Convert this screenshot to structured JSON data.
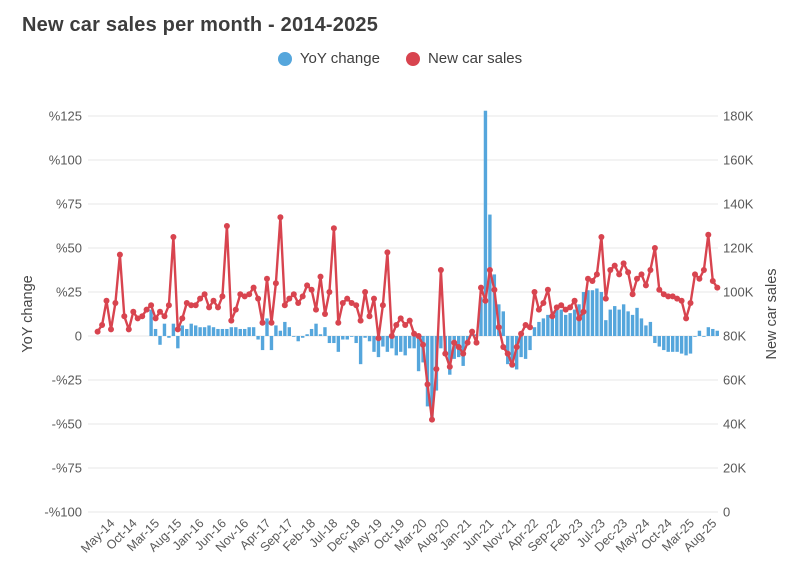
{
  "title": "New car sales per month - 2014-2025",
  "legend": [
    {
      "label": "YoY change",
      "color": "#55a6dc"
    },
    {
      "label": "New car sales",
      "color": "#d8444f"
    }
  ],
  "chart_data": {
    "type": "bar",
    "subtype": "combo bar+line, dual axis, monthly data Jan-2014 through Aug-2025",
    "title": "New car sales per month - 2014-2025",
    "left_axis": {
      "title": "YoY change",
      "unit": "%",
      "tick_labels": [
        "%125",
        "%100",
        "%75",
        "%50",
        "%25",
        "0",
        "-%25",
        "-%50",
        "-%75",
        "-%100"
      ],
      "range": [
        -100,
        125
      ],
      "grid": true
    },
    "right_axis": {
      "title": "New car sales",
      "unit": "units",
      "tick_labels": [
        "180K",
        "160K",
        "140K",
        "120K",
        "100K",
        "80K",
        "60K",
        "40K",
        "20K",
        "0"
      ],
      "range": [
        0,
        180000
      ]
    },
    "x_tick_labels": [
      "May-14",
      "Oct-14",
      "Mar-15",
      "Aug-15",
      "Jan-16",
      "Jun-16",
      "Nov-16",
      "Apr-17",
      "Sep-17",
      "Feb-18",
      "Jul-18",
      "Dec-18",
      "May-19",
      "Oct-19",
      "Mar-20",
      "Aug-20",
      "Jan-21",
      "Jun-21",
      "Nov-21",
      "Apr-22",
      "Sep-22",
      "Feb-23",
      "Jul-23",
      "Dec-23",
      "May-24",
      "Oct-24",
      "Mar-25",
      "Aug-25"
    ],
    "x_tick_every_n_months": 5,
    "series": [
      {
        "name": "New car sales",
        "type": "line",
        "axis": "right",
        "color": "#d8444f",
        "start": "2014-01",
        "values_thousands": [
          82,
          85,
          96,
          83,
          95,
          117,
          89,
          83,
          91,
          88,
          89,
          92,
          94,
          88,
          91,
          89,
          94,
          125,
          83,
          88,
          95,
          94,
          94,
          97,
          99,
          93,
          96,
          93,
          98,
          130,
          87,
          92,
          99,
          98,
          99,
          102,
          97,
          86,
          106,
          86,
          104,
          134,
          94,
          97,
          99,
          95,
          98,
          103,
          101,
          92,
          107,
          90,
          100,
          129,
          86,
          95,
          97,
          95,
          94,
          87,
          100,
          89,
          97,
          79,
          94,
          118,
          80,
          85,
          88,
          85,
          87,
          81,
          80,
          76,
          58,
          42,
          65,
          110,
          72,
          66,
          77,
          75,
          72,
          77,
          82,
          77,
          102,
          96,
          110,
          101,
          84,
          75,
          72,
          67,
          75,
          81,
          85,
          84,
          100,
          92,
          95,
          101,
          89,
          93,
          94,
          92,
          93,
          96,
          88,
          91,
          106,
          105,
          108,
          125,
          97,
          110,
          112,
          108,
          113,
          109,
          99,
          106,
          108,
          103,
          110,
          120,
          101,
          99,
          98,
          98,
          97,
          96,
          88,
          95,
          108,
          106,
          110,
          126,
          105,
          102
        ]
      },
      {
        "name": "YoY change",
        "type": "bar",
        "axis": "left",
        "color": "#55a6dc",
        "start": "2015-01",
        "values_percent": [
          15,
          4,
          -5,
          7,
          -1,
          7,
          -7,
          6,
          4,
          7,
          6,
          5,
          5,
          6,
          5,
          4,
          4,
          4,
          5,
          5,
          4,
          4,
          5,
          5,
          -2,
          -8,
          10,
          -8,
          6,
          3,
          8,
          5,
          0,
          -3,
          -1,
          1,
          4,
          7,
          1,
          5,
          -4,
          -4,
          -9,
          -2,
          -2,
          0,
          -4,
          -16,
          -1,
          -3,
          -9,
          -12,
          -6,
          -9,
          -7,
          -11,
          -9,
          -11,
          -7,
          -7,
          -20,
          -15,
          -40,
          -47,
          -31,
          -7,
          -10,
          -22,
          -13,
          -12,
          -17,
          -5,
          3,
          1,
          22,
          128,
          69,
          35,
          18,
          14,
          -16,
          -18,
          -19,
          -12,
          -13,
          -8,
          5,
          8,
          10,
          12,
          14,
          15,
          15,
          12,
          13,
          15,
          18,
          25,
          26,
          26,
          27,
          25,
          9,
          15,
          17,
          15,
          18,
          14,
          12,
          16,
          10,
          6,
          8,
          -4,
          -6,
          -8,
          -9,
          -9,
          -9,
          -10,
          -11,
          -10,
          0,
          3,
          0,
          5,
          4,
          3
        ]
      }
    ],
    "legend_position": "top-center",
    "grid_color": "#e7e7e7",
    "text_color": "#595959"
  }
}
